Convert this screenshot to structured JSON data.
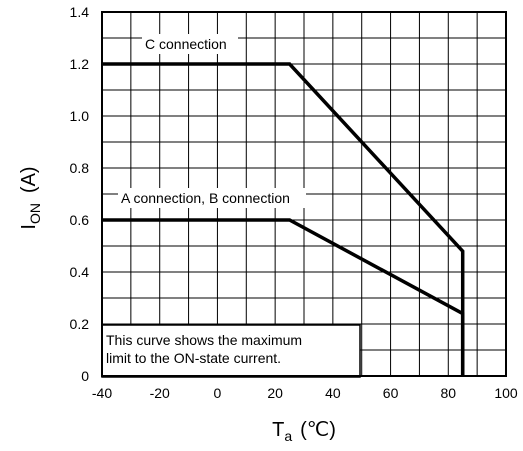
{
  "chart_data": {
    "type": "line",
    "xlim": [
      -40,
      100
    ],
    "ylim": [
      0,
      1.4
    ],
    "x_ticks": [
      "-40",
      "-20",
      "0",
      "20",
      "40",
      "60",
      "80",
      "100"
    ],
    "y_ticks": [
      "0",
      "0.2",
      "0.4",
      "0.6",
      "0.8",
      "1.0",
      "1.2",
      "1.4"
    ],
    "grid": true,
    "xlabel": {
      "main": "T",
      "sub": "a",
      "unit": "(℃)"
    },
    "ylabel": {
      "main": "I",
      "sub": "ON",
      "unit": "(A)"
    },
    "series": [
      {
        "name": "C connection",
        "points": [
          [
            -40,
            1.2
          ],
          [
            25,
            1.2
          ],
          [
            85,
            0.48
          ],
          [
            85,
            0
          ]
        ]
      },
      {
        "name": "A connection, B connection",
        "points": [
          [
            -40,
            0.6
          ],
          [
            25,
            0.6
          ],
          [
            85,
            0.24
          ],
          [
            85,
            0
          ]
        ]
      }
    ],
    "note": [
      "This curve shows the maximum",
      "limit to the ON-state current."
    ]
  }
}
